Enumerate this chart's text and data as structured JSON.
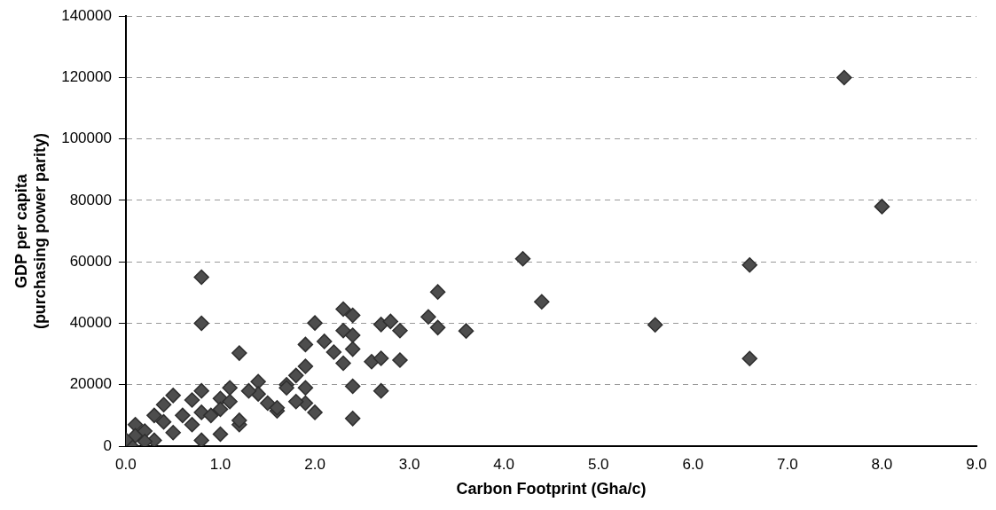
{
  "chart_data": {
    "type": "scatter",
    "xlabel": "Carbon Footprint (Gha/c)",
    "ylabel": "GDP per capita\n(purchasing power parity)",
    "xlim": [
      0,
      9
    ],
    "xticks": [
      {
        "value": 0,
        "label": "0.0"
      },
      {
        "value": 1,
        "label": "1.0"
      },
      {
        "value": 2,
        "label": "2.0"
      },
      {
        "value": 3,
        "label": "3.0"
      },
      {
        "value": 4,
        "label": "4.0"
      },
      {
        "value": 5,
        "label": "5.0"
      },
      {
        "value": 6,
        "label": "6.0"
      },
      {
        "value": 7,
        "label": "7.0"
      },
      {
        "value": 8,
        "label": "8.0"
      },
      {
        "value": 9,
        "label": "9.0"
      }
    ],
    "ylim": [
      0,
      140000
    ],
    "yticks": [
      0,
      20000,
      40000,
      60000,
      80000,
      100000,
      120000,
      140000
    ],
    "grid": "y",
    "marker": "diamond",
    "legend": false,
    "series": [
      {
        "color": "#4d4d4d",
        "x": [
          7.6,
          8.0,
          4.2,
          6.6,
          4.4,
          3.6,
          5.6,
          6.6,
          0.8,
          0.8,
          1.2,
          3.3,
          3.2,
          3.3,
          2.7,
          2.8,
          2.9,
          2.3,
          2.4,
          2.3,
          2.4,
          2.0,
          1.9,
          2.1,
          2.2,
          2.3,
          2.4,
          2.6,
          2.7,
          2.9,
          2.4,
          2.7,
          2.4,
          1.9,
          1.8,
          1.7,
          1.9,
          2.0,
          1.9,
          1.6,
          1.8,
          1.4,
          1.4,
          1.5,
          1.1,
          0.8,
          0.5,
          0.7,
          1.0,
          1.1,
          0.4,
          0.6,
          0.8,
          0.3,
          0.5,
          0.3,
          0.1,
          0.1,
          0.8,
          1.0,
          1.2,
          1.2,
          1.3,
          1.6,
          1.7,
          0.2,
          0.4,
          0.7,
          0.9,
          1.0,
          0.2,
          0.05,
          0.0
        ],
        "values": [
          120000,
          78000,
          61000,
          59000,
          47000,
          37500,
          39500,
          28500,
          55000,
          40000,
          30300,
          50200,
          42100,
          38600,
          39600,
          40600,
          37600,
          44600,
          42600,
          37600,
          36100,
          40100,
          33100,
          34100,
          30600,
          27000,
          31600,
          27500,
          28600,
          28000,
          19500,
          18000,
          9000,
          26000,
          23000,
          20000,
          19000,
          11000,
          14000,
          11500,
          14500,
          21000,
          17000,
          14000,
          19000,
          18000,
          16500,
          15000,
          15500,
          14500,
          13500,
          10000,
          11000,
          10000,
          4400,
          1900,
          7000,
          3400,
          1900,
          3900,
          7000,
          8400,
          18000,
          12500,
          19000,
          4900,
          7900,
          7000,
          10000,
          12000,
          1500,
          300,
          2000
        ]
      }
    ]
  }
}
